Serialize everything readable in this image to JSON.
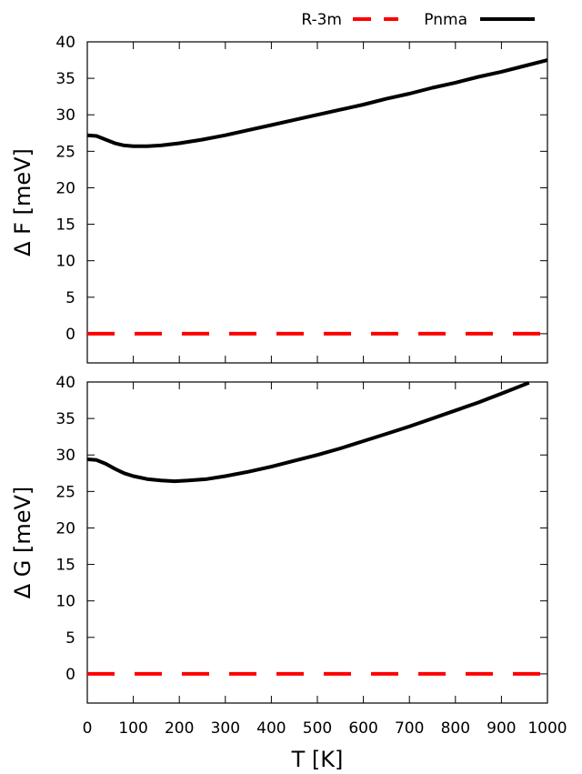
{
  "chart_data": [
    {
      "type": "line",
      "panel": "top",
      "ylabel": "Δ F [meV]",
      "xlabel": "",
      "xlim": [
        0,
        1000
      ],
      "ylim": [
        -4,
        40
      ],
      "yticks": [
        0,
        5,
        10,
        15,
        20,
        25,
        30,
        35,
        40
      ],
      "xticks": [
        0,
        100,
        200,
        300,
        400,
        500,
        600,
        700,
        800,
        900,
        1000
      ],
      "series": [
        {
          "name": "R-3m",
          "color": "#ff0000",
          "style": "dashed",
          "x": [
            0,
            1000
          ],
          "y": [
            0,
            0
          ]
        },
        {
          "name": "Pnma",
          "color": "#000000",
          "style": "solid",
          "x": [
            0,
            20,
            40,
            60,
            80,
            100,
            130,
            160,
            200,
            250,
            300,
            350,
            400,
            450,
            500,
            550,
            600,
            650,
            700,
            750,
            800,
            850,
            900,
            950,
            1000
          ],
          "y": [
            27.2,
            27.1,
            26.6,
            26.1,
            25.8,
            25.7,
            25.7,
            25.8,
            26.1,
            26.6,
            27.2,
            27.9,
            28.6,
            29.3,
            30.0,
            30.7,
            31.4,
            32.2,
            32.9,
            33.7,
            34.4,
            35.2,
            35.9,
            36.7,
            37.5
          ]
        }
      ]
    },
    {
      "type": "line",
      "panel": "bottom",
      "ylabel": "Δ G [meV]",
      "xlabel": "T [K]",
      "xlim": [
        0,
        1000
      ],
      "ylim": [
        -4,
        40
      ],
      "yticks": [
        0,
        5,
        10,
        15,
        20,
        25,
        30,
        35,
        40
      ],
      "xticks": [
        0,
        100,
        200,
        300,
        400,
        500,
        600,
        700,
        800,
        900,
        1000
      ],
      "series": [
        {
          "name": "R-3m",
          "color": "#ff0000",
          "style": "dashed",
          "x": [
            0,
            1000
          ],
          "y": [
            0,
            0
          ]
        },
        {
          "name": "Pnma",
          "color": "#000000",
          "style": "solid",
          "x": [
            0,
            20,
            40,
            60,
            80,
            100,
            130,
            160,
            190,
            220,
            260,
            300,
            350,
            400,
            450,
            500,
            550,
            600,
            650,
            700,
            750,
            800,
            850,
            900,
            960
          ],
          "y": [
            29.4,
            29.3,
            28.8,
            28.1,
            27.5,
            27.1,
            26.7,
            26.5,
            26.4,
            26.5,
            26.7,
            27.1,
            27.7,
            28.4,
            29.2,
            30.0,
            30.9,
            31.9,
            32.9,
            33.9,
            35.0,
            36.1,
            37.2,
            38.4,
            39.9
          ]
        }
      ]
    }
  ],
  "legend": {
    "position": "top-right",
    "items": [
      {
        "label": "R-3m",
        "color": "#ff0000",
        "style": "dashed"
      },
      {
        "label": "Pnma",
        "color": "#000000",
        "style": "solid"
      }
    ]
  }
}
